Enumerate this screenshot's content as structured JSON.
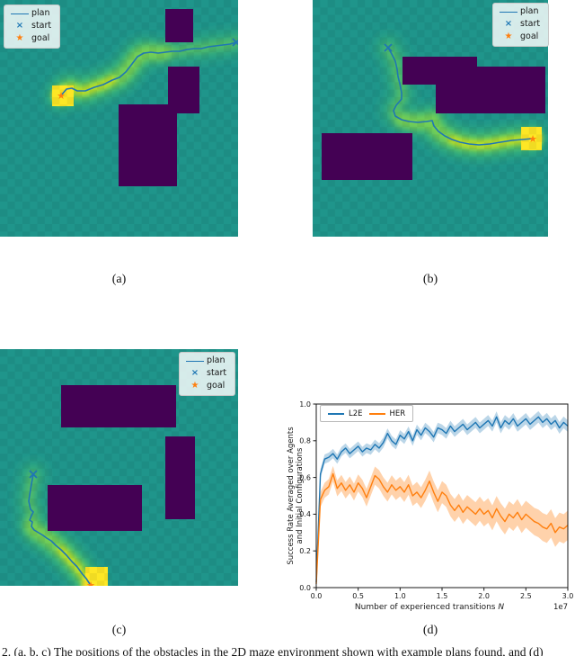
{
  "captions": {
    "a": "(a)",
    "b": "(b)",
    "c": "(c)",
    "d": "(d)"
  },
  "figure_caption": "2. (a, b, c) The positions of the obstacles in the 2D maze environment shown with example plans found, and (d)",
  "maze_legend": {
    "plan": "plan",
    "start": "start",
    "goal": "goal"
  },
  "colors": {
    "heatmap_base": "#1f958b",
    "obstacle": "#440154",
    "glow_outer": "#35b779",
    "glow_mid": "#7ad151",
    "glow_inner": "#c0df25",
    "goal_cell": "#fde725",
    "plan_line": "#1f77b4",
    "start_marker": "#1f77b4",
    "goal_marker": "#ff7f0e",
    "axis": "#1a1a1a",
    "l2e": "#1f77b4",
    "her": "#ff7f0e"
  },
  "chart_data": [
    {
      "type": "heatmap",
      "panel": "a",
      "legend": [
        "plan",
        "start",
        "goal"
      ],
      "obstacles": [
        [
          184,
          10,
          31,
          37
        ],
        [
          187,
          74,
          35,
          52
        ],
        [
          132,
          116,
          65,
          91
        ]
      ],
      "path": [
        [
          263,
          47
        ],
        [
          256,
          49
        ],
        [
          248,
          50
        ],
        [
          240,
          51
        ],
        [
          232,
          52
        ],
        [
          224,
          54
        ],
        [
          216,
          54
        ],
        [
          208,
          55
        ],
        [
          200,
          57
        ],
        [
          192,
          57
        ],
        [
          184,
          58
        ],
        [
          176,
          59
        ],
        [
          168,
          58
        ],
        [
          160,
          59
        ],
        [
          153,
          63
        ],
        [
          147,
          71
        ],
        [
          140,
          80
        ],
        [
          133,
          86
        ],
        [
          125,
          89
        ],
        [
          115,
          94
        ],
        [
          105,
          97
        ],
        [
          95,
          101
        ],
        [
          86,
          101
        ],
        [
          80,
          98
        ],
        [
          74,
          99
        ],
        [
          68,
          106
        ]
      ],
      "start": [
        263,
        47
      ],
      "goal": [
        68,
        106
      ],
      "goal_cell_rect": [
        58,
        95,
        24,
        23
      ]
    },
    {
      "type": "heatmap",
      "panel": "b",
      "legend": [
        "plan",
        "start",
        "goal"
      ],
      "obstacles": [
        [
          100,
          63,
          83,
          31
        ],
        [
          183,
          74,
          76,
          52
        ],
        [
          137,
          94,
          46,
          32
        ],
        [
          10,
          148,
          101,
          52
        ]
      ],
      "path": [
        [
          84,
          53
        ],
        [
          88,
          60
        ],
        [
          92,
          68
        ],
        [
          94,
          77
        ],
        [
          95,
          85
        ],
        [
          97,
          93
        ],
        [
          99,
          103
        ],
        [
          99,
          110
        ],
        [
          93,
          117
        ],
        [
          90,
          123
        ],
        [
          92,
          129
        ],
        [
          99,
          133
        ],
        [
          107,
          135
        ],
        [
          117,
          136
        ],
        [
          127,
          135
        ],
        [
          133,
          134
        ],
        [
          135,
          140
        ],
        [
          140,
          146
        ],
        [
          147,
          151
        ],
        [
          155,
          155
        ],
        [
          164,
          158
        ],
        [
          174,
          160
        ],
        [
          185,
          161
        ],
        [
          197,
          160
        ],
        [
          209,
          158
        ],
        [
          222,
          156
        ],
        [
          234,
          155
        ],
        [
          245,
          154
        ]
      ],
      "start": [
        84,
        53
      ],
      "goal": [
        245,
        154
      ],
      "goal_cell_rect": [
        232,
        141,
        23,
        26
      ]
    },
    {
      "type": "heatmap",
      "panel": "c",
      "legend": [
        "plan",
        "start",
        "goal"
      ],
      "obstacles": [
        [
          68,
          40,
          128,
          47
        ],
        [
          184,
          97,
          33,
          92
        ],
        [
          53,
          151,
          105,
          51
        ]
      ],
      "path": [
        [
          37,
          139
        ],
        [
          35,
          150
        ],
        [
          33,
          162
        ],
        [
          32,
          169
        ],
        [
          34,
          178
        ],
        [
          37,
          181
        ],
        [
          35,
          185
        ],
        [
          33,
          190
        ],
        [
          36,
          192
        ],
        [
          35,
          197
        ],
        [
          38,
          201
        ],
        [
          43,
          204
        ],
        [
          48,
          207
        ],
        [
          52,
          210
        ],
        [
          57,
          213
        ],
        [
          62,
          218
        ],
        [
          68,
          223
        ],
        [
          74,
          229
        ],
        [
          80,
          236
        ],
        [
          86,
          242
        ],
        [
          91,
          249
        ],
        [
          96,
          255
        ],
        [
          100,
          261
        ]
      ],
      "start": [
        37,
        139
      ],
      "goal": [
        101,
        262
      ],
      "goal_cell_rect": [
        95,
        242,
        25,
        21
      ]
    },
    {
      "type": "line",
      "panel": "d",
      "xlabel_main": "Number of experienced transitions ",
      "xlabel_var": "N",
      "x_offset_label": "1e7",
      "ylabel_line1": "Success Rate Averaged over Agents",
      "ylabel_line2": "and Initial Configurations",
      "xlim": [
        0.0,
        3.0
      ],
      "ylim": [
        0.0,
        1.0
      ],
      "xticks": [
        "0.0",
        "0.5",
        "1.0",
        "1.5",
        "2.0",
        "2.5",
        "3.0"
      ],
      "yticks": [
        "0.0",
        "0.2",
        "0.4",
        "0.6",
        "0.8",
        "1.0"
      ],
      "legend_position": "upper left",
      "x_step": 0.05,
      "series": [
        {
          "name": "L2E",
          "color": "#1f77b4",
          "band_alpha": 0.3,
          "band_halfwidth_start": 0.025,
          "band_halfwidth_end": 0.032,
          "values": [
            0.03,
            0.62,
            0.7,
            0.71,
            0.73,
            0.7,
            0.74,
            0.76,
            0.73,
            0.75,
            0.77,
            0.74,
            0.76,
            0.75,
            0.78,
            0.76,
            0.79,
            0.84,
            0.8,
            0.78,
            0.83,
            0.81,
            0.85,
            0.8,
            0.86,
            0.83,
            0.87,
            0.85,
            0.82,
            0.87,
            0.86,
            0.84,
            0.88,
            0.85,
            0.87,
            0.89,
            0.86,
            0.88,
            0.9,
            0.87,
            0.89,
            0.91,
            0.88,
            0.93,
            0.87,
            0.91,
            0.89,
            0.92,
            0.88,
            0.9,
            0.92,
            0.89,
            0.91,
            0.93,
            0.9,
            0.92,
            0.89,
            0.91,
            0.87,
            0.9,
            0.88
          ]
        },
        {
          "name": "HER",
          "color": "#ff7f0e",
          "band_alpha": 0.35,
          "band_halfwidth_start": 0.04,
          "band_halfwidth_end": 0.08,
          "values": [
            0.02,
            0.48,
            0.53,
            0.55,
            0.62,
            0.54,
            0.57,
            0.53,
            0.56,
            0.52,
            0.57,
            0.54,
            0.49,
            0.55,
            0.61,
            0.59,
            0.55,
            0.52,
            0.56,
            0.53,
            0.55,
            0.52,
            0.56,
            0.5,
            0.52,
            0.49,
            0.53,
            0.58,
            0.52,
            0.47,
            0.52,
            0.5,
            0.45,
            0.42,
            0.45,
            0.41,
            0.44,
            0.42,
            0.4,
            0.43,
            0.4,
            0.42,
            0.38,
            0.43,
            0.39,
            0.36,
            0.4,
            0.38,
            0.41,
            0.37,
            0.4,
            0.38,
            0.36,
            0.35,
            0.33,
            0.32,
            0.35,
            0.3,
            0.33,
            0.32,
            0.34
          ]
        }
      ]
    }
  ]
}
